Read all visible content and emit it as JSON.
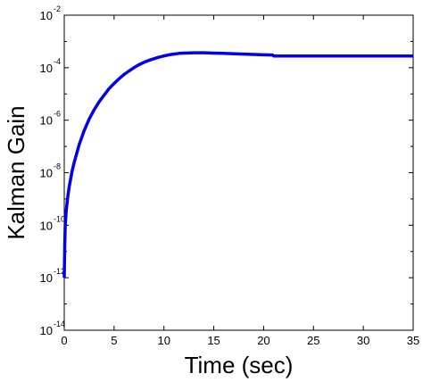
{
  "chart_data": {
    "type": "line",
    "xlabel": "Time (sec)",
    "ylabel": "Kalman Gain",
    "xlim": [
      0,
      35
    ],
    "ylim": [
      1e-14,
      0.01
    ],
    "yscale": "log",
    "grid": false,
    "x_ticks": [
      "0",
      "5",
      "10",
      "15",
      "20",
      "25",
      "30",
      "35"
    ],
    "y_ticks": [
      {
        "base": "10",
        "exp": "-2",
        "value": 0.01
      },
      {
        "base": "10",
        "exp": "-4",
        "value": 0.0001
      },
      {
        "base": "10",
        "exp": "-6",
        "value": 1e-06
      },
      {
        "base": "10",
        "exp": "-8",
        "value": 1e-08
      },
      {
        "base": "10",
        "exp": "-10",
        "value": 1e-10
      },
      {
        "base": "10",
        "exp": "-12",
        "value": 1e-12
      },
      {
        "base": "10",
        "exp": "-14",
        "value": 1e-14
      }
    ],
    "series": [
      {
        "color": "#0000ee",
        "x": [
          0.0,
          0.05,
          0.1,
          0.2,
          0.35,
          0.5,
          0.8,
          1.0,
          1.5,
          2.0,
          2.5,
          3.0,
          3.5,
          4.0,
          4.5,
          5.0,
          5.5,
          6.0,
          6.5,
          7.0,
          7.5,
          8.0,
          8.5,
          9.0,
          9.5,
          10.0,
          10.5,
          11.0,
          11.5,
          12.0,
          13.0,
          14.0,
          15.0,
          16.0,
          17.0,
          18.0,
          19.0,
          20.0,
          20.9,
          21.0,
          22.0,
          25.0,
          30.0,
          35.0
        ],
        "y": [
          1e-12,
          2e-11,
          1e-10,
          3.5e-10,
          1.2e-09,
          3e-09,
          1.2e-08,
          2.5e-08,
          1.2e-07,
          4e-07,
          1.1e-06,
          2.5e-06,
          5e-06,
          9e-06,
          1.6e-05,
          2.5e-05,
          3.8e-05,
          5.5e-05,
          7.5e-05,
          0.0001,
          0.00013,
          0.00016,
          0.00019,
          0.00022,
          0.00025,
          0.00028,
          0.00031,
          0.00033,
          0.00035,
          0.00036,
          0.00037,
          0.00037,
          0.00036,
          0.00035,
          0.00034,
          0.00033,
          0.00032,
          0.00031,
          0.000305,
          0.00028,
          0.00028,
          0.00028,
          0.00028,
          0.00028
        ]
      }
    ]
  }
}
